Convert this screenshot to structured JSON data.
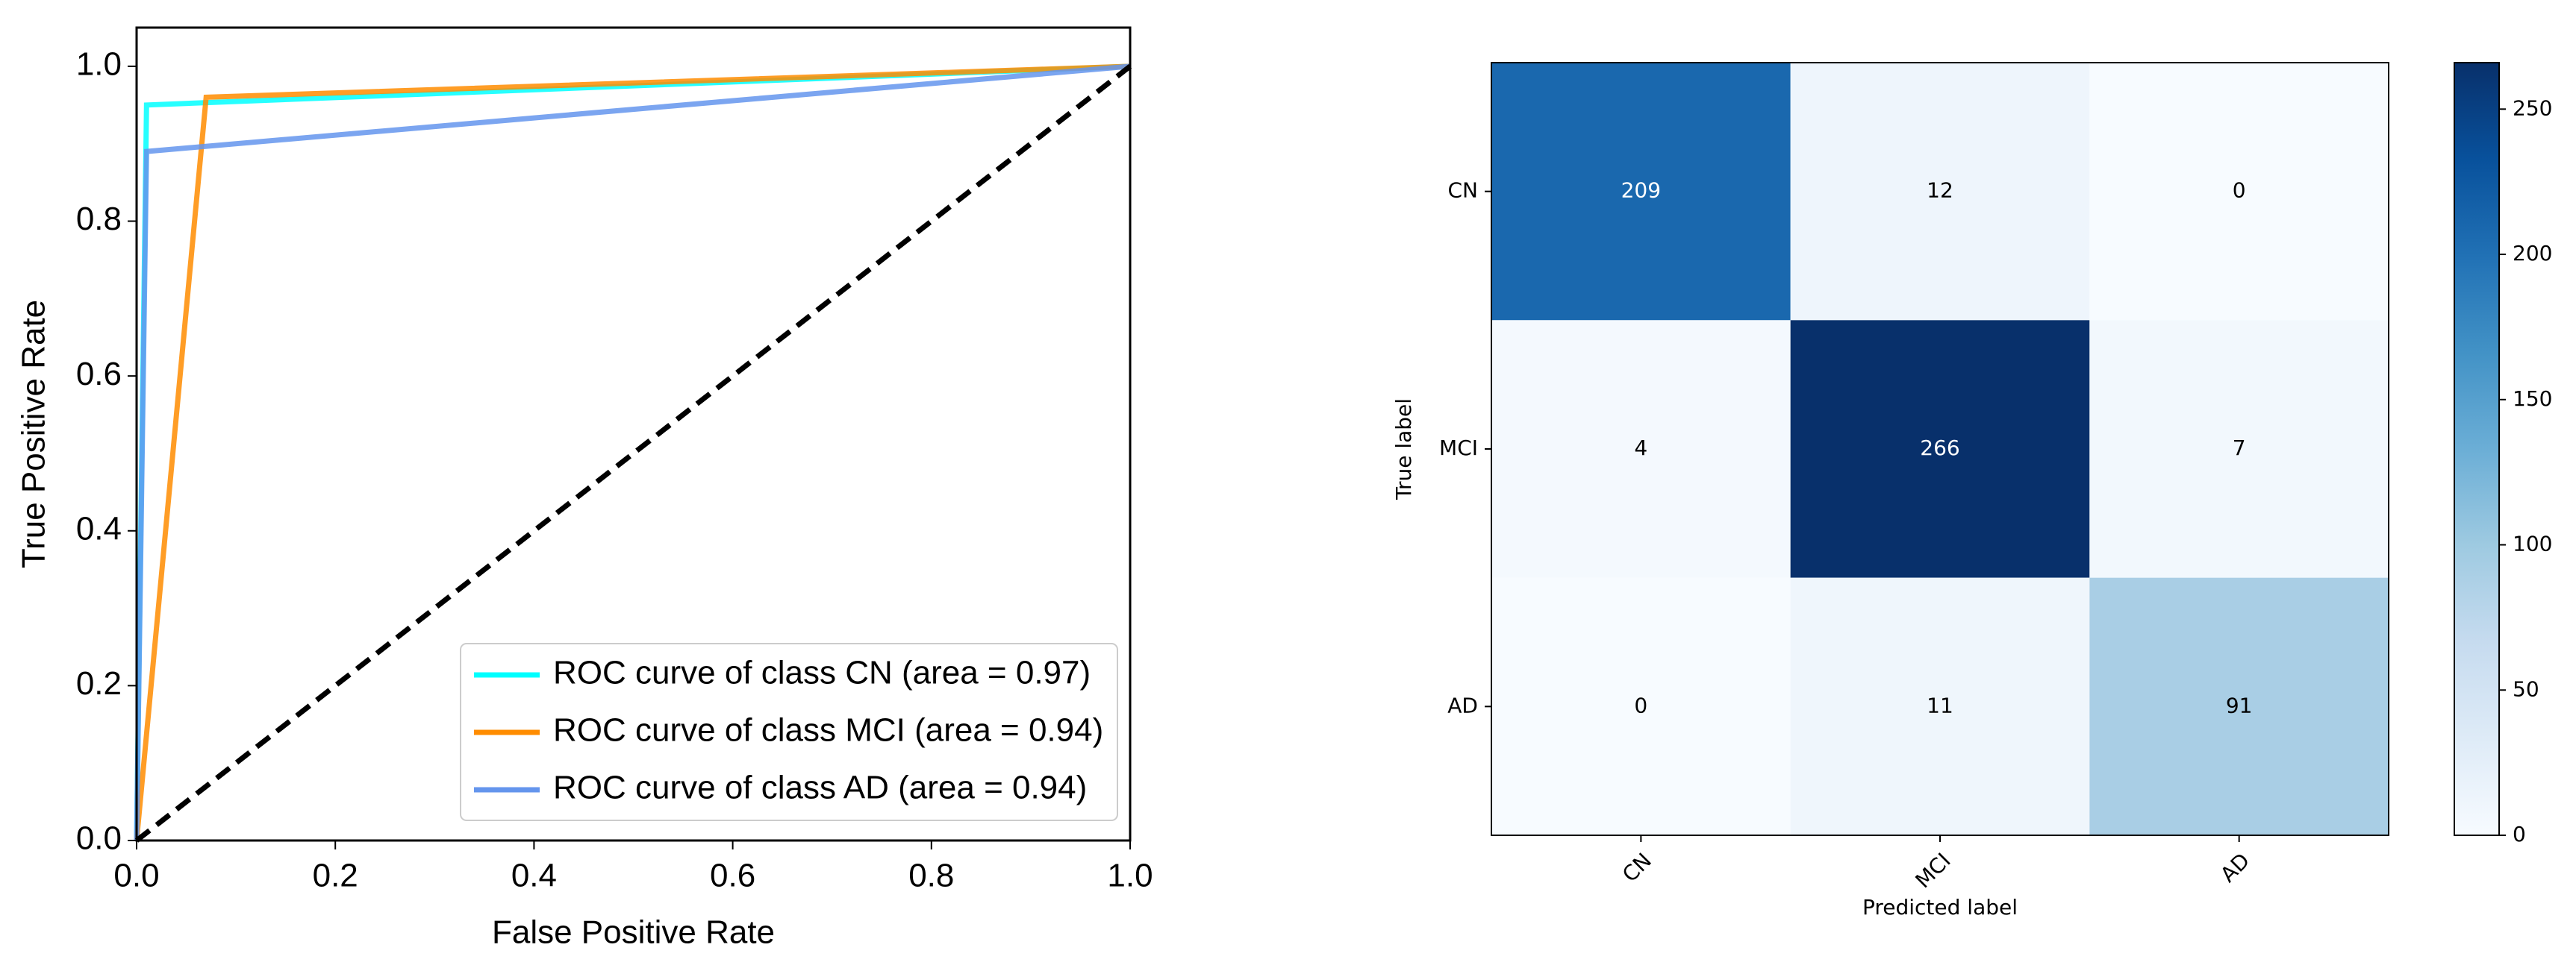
{
  "chart_data": [
    {
      "type": "line",
      "xlabel": "False Positive Rate",
      "ylabel": "True Positive Rate",
      "xlim": [
        0,
        1
      ],
      "ylim": [
        0,
        1.05
      ],
      "xticks": [
        {
          "value": 0,
          "label": "0.0"
        },
        0.2,
        0.4,
        0.6,
        0.8,
        {
          "value": 1,
          "label": "1.0"
        }
      ],
      "yticks": [
        {
          "value": 0,
          "label": "0.0"
        },
        0.2,
        0.4,
        0.6,
        0.8,
        {
          "value": 1,
          "label": "1.0"
        }
      ],
      "legend": "lower right",
      "series": [
        {
          "name": "ROC curve of class CN (area = 0.97)",
          "color": "#00ffff",
          "x": [
            0,
            0.01,
            1
          ],
          "values": [
            0,
            0.95,
            1
          ]
        },
        {
          "name": "ROC curve of class MCI (area = 0.94)",
          "color": "#ff8c00",
          "x": [
            0,
            0.07,
            1
          ],
          "values": [
            0,
            0.96,
            1
          ]
        },
        {
          "name": "ROC curve of class AD (area = 0.94)",
          "color": "#6495ed",
          "x": [
            0,
            0.01,
            1
          ],
          "values": [
            0,
            0.89,
            1
          ]
        }
      ]
    },
    {
      "type": "heatmap",
      "xlabel": "Predicted label",
      "ylabel": "True label",
      "x_categories": [
        "CN",
        "MCI",
        "AD"
      ],
      "y_categories": [
        "CN",
        "MCI",
        "AD"
      ],
      "values": [
        [
          209,
          12,
          0
        ],
        [
          4,
          266,
          7
        ],
        [
          0,
          11,
          91
        ]
      ],
      "zlim": [
        0,
        266
      ],
      "zticks": [
        0,
        50,
        100,
        150,
        200,
        250
      ],
      "colormap": [
        "#f7fbff",
        "#deebf7",
        "#c6dbef",
        "#9ecae1",
        "#6baed6",
        "#4292c6",
        "#2171b5",
        "#08519c",
        "#08306b"
      ]
    }
  ]
}
